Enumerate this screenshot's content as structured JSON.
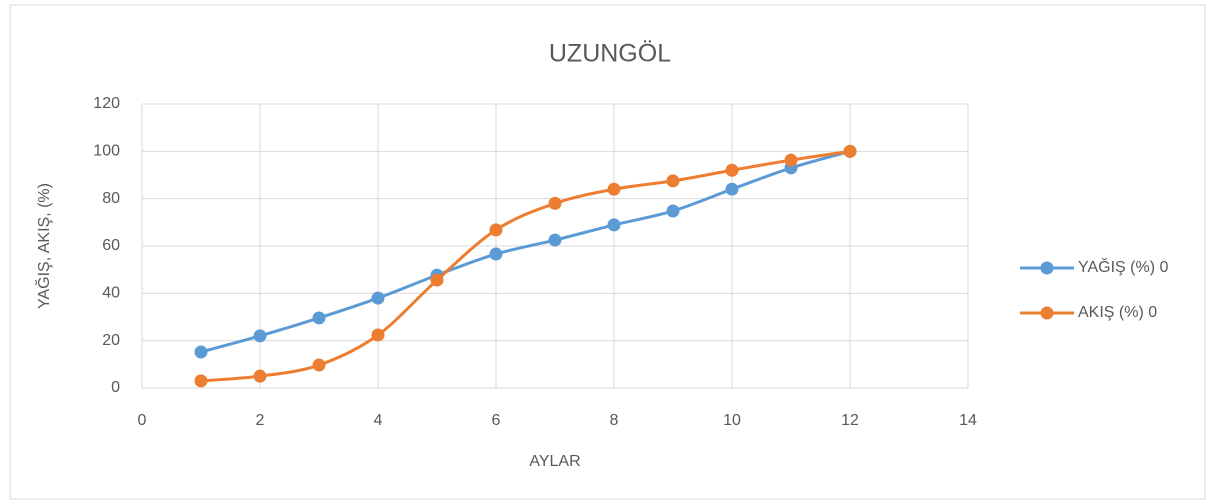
{
  "chart_data": {
    "type": "scatter_smooth",
    "title": "UZUNGÖL",
    "x_label": "AYLAR",
    "y_label": "YAĞIŞ, AKIŞ, (%)",
    "x": [
      1,
      2,
      3,
      4,
      5,
      6,
      7,
      8,
      9,
      10,
      11,
      12
    ],
    "series": [
      {
        "name": "YAĞIŞ (%) 0",
        "color": "#5b9bd5",
        "values": [
          15.2,
          22,
          29.6,
          38,
          47.7,
          56.6,
          62.5,
          68.9,
          74.8,
          84,
          93,
          100
        ]
      },
      {
        "name": "AKIŞ (%) 0",
        "color": "#ed7d31",
        "values": [
          3,
          5,
          9.7,
          22.4,
          45.6,
          66.8,
          78,
          84,
          87.5,
          92,
          96.3,
          100
        ]
      }
    ],
    "xlim": [
      0,
      14
    ],
    "xticks": [
      0,
      2,
      4,
      6,
      8,
      10,
      12,
      14
    ],
    "ylim": [
      0,
      120
    ],
    "yticks": [
      0,
      20,
      40,
      60,
      80,
      100,
      120
    ],
    "grid": true,
    "legend": "right"
  }
}
